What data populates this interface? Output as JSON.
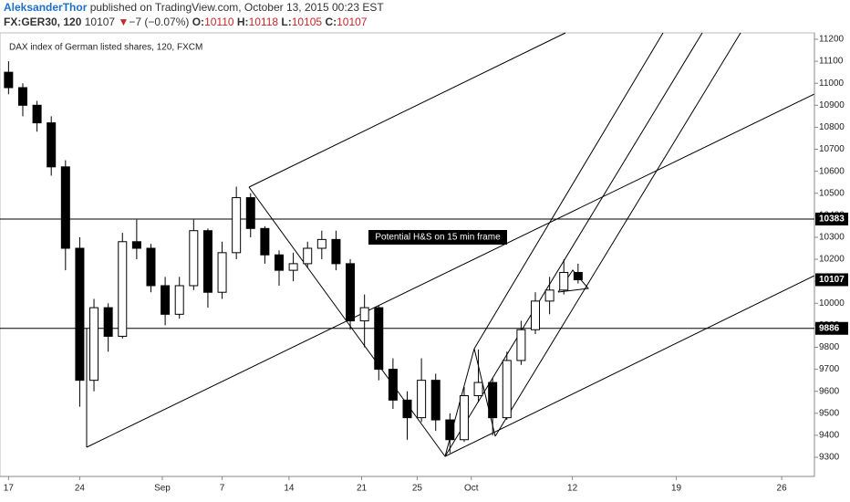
{
  "header": {
    "author": "AleksanderThor",
    "published": "published on TradingView.com, October 13, 2015 00:23 EST",
    "symbol": "FX:GER30, 120",
    "price": 10107,
    "arrow": "▼",
    "change": "−7 (−0.07%)",
    "o_label": "O:",
    "open": 10110,
    "h_label": "H:",
    "high": 10118,
    "l_label": "L:",
    "low": 10105,
    "c_label": "C:",
    "close": 10107
  },
  "chart_data": {
    "type": "candlestick",
    "title": "DAX index of German listed shares, 120, FXCM",
    "annotation": "Potential H&S on 15 min frame",
    "x": [
      0,
      1,
      2,
      3,
      4,
      5,
      6,
      7,
      8,
      9,
      10,
      11,
      12,
      13,
      14,
      15,
      16,
      17,
      18,
      19,
      20,
      21,
      22,
      23,
      24,
      25,
      26,
      27,
      28,
      29,
      30,
      31,
      32,
      33,
      34,
      35,
      36,
      37,
      38,
      39,
      40
    ],
    "open": [
      11050,
      10980,
      10900,
      10820,
      10620,
      10250,
      9650,
      9980,
      9850,
      10280,
      10250,
      10080,
      9950,
      10080,
      10330,
      10050,
      10230,
      10480,
      10340,
      10220,
      10150,
      10180,
      10250,
      10290,
      10180,
      9920,
      9980,
      9700,
      9560,
      9480,
      9650,
      9470,
      9380,
      9580,
      9640,
      9480,
      9740,
      9880,
      10010,
      10060,
      10140
    ],
    "high": [
      11100,
      11000,
      10920,
      10850,
      10650,
      10300,
      10020,
      10000,
      10320,
      10380,
      10270,
      10120,
      10120,
      10380,
      10340,
      10280,
      10530,
      10500,
      10350,
      10240,
      10230,
      10280,
      10330,
      10330,
      10200,
      10040,
      9990,
      9750,
      9600,
      9750,
      9680,
      9500,
      9620,
      9790,
      9660,
      9780,
      9920,
      10050,
      10120,
      10200,
      10180
    ],
    "low": [
      10950,
      10850,
      10780,
      10580,
      10150,
      9530,
      9600,
      9780,
      9840,
      10200,
      10050,
      9900,
      9930,
      10060,
      9980,
      10020,
      10200,
      10300,
      10180,
      10080,
      10100,
      10160,
      10200,
      10150,
      9880,
      9800,
      9650,
      9520,
      9380,
      9460,
      9420,
      9320,
      9370,
      9550,
      9400,
      9470,
      9720,
      9860,
      9950,
      10040,
      10090
    ],
    "close": [
      10980,
      10900,
      10820,
      10620,
      10250,
      9650,
      9980,
      9850,
      10280,
      10250,
      10080,
      9950,
      10080,
      10330,
      10050,
      10230,
      10480,
      10340,
      10220,
      10150,
      10180,
      10250,
      10290,
      10180,
      9920,
      9980,
      9700,
      9560,
      9480,
      9650,
      9470,
      9380,
      9580,
      9640,
      9480,
      9740,
      9880,
      10010,
      10060,
      10140,
      10107
    ],
    "up_color": "#ffffff",
    "down_color": "#000000",
    "xlim": [
      -0.6,
      56.6
    ],
    "xticks": [
      {
        "value": 0,
        "label": "17"
      },
      {
        "value": 5,
        "label": "24"
      },
      {
        "value": 10.8,
        "label": "Sep"
      },
      {
        "value": 15,
        "label": "7"
      },
      {
        "value": 19.7,
        "label": "14"
      },
      {
        "value": 24.8,
        "label": "21"
      },
      {
        "value": 28.7,
        "label": "25"
      },
      {
        "value": 32.5,
        "label": "Oct"
      },
      {
        "value": 39.6,
        "label": "12"
      },
      {
        "value": 46.9,
        "label": "19"
      },
      {
        "value": 54.3,
        "label": "26"
      }
    ],
    "ylim": [
      9213,
      11229
    ],
    "yticks": [
      9300,
      9400,
      9500,
      9600,
      9700,
      9800,
      9900,
      10000,
      10100,
      10200,
      10300,
      10400,
      10500,
      10600,
      10700,
      10800,
      10900,
      11000,
      11100,
      11200
    ],
    "price_lines": [
      10383,
      9886
    ],
    "last": 10107
  }
}
